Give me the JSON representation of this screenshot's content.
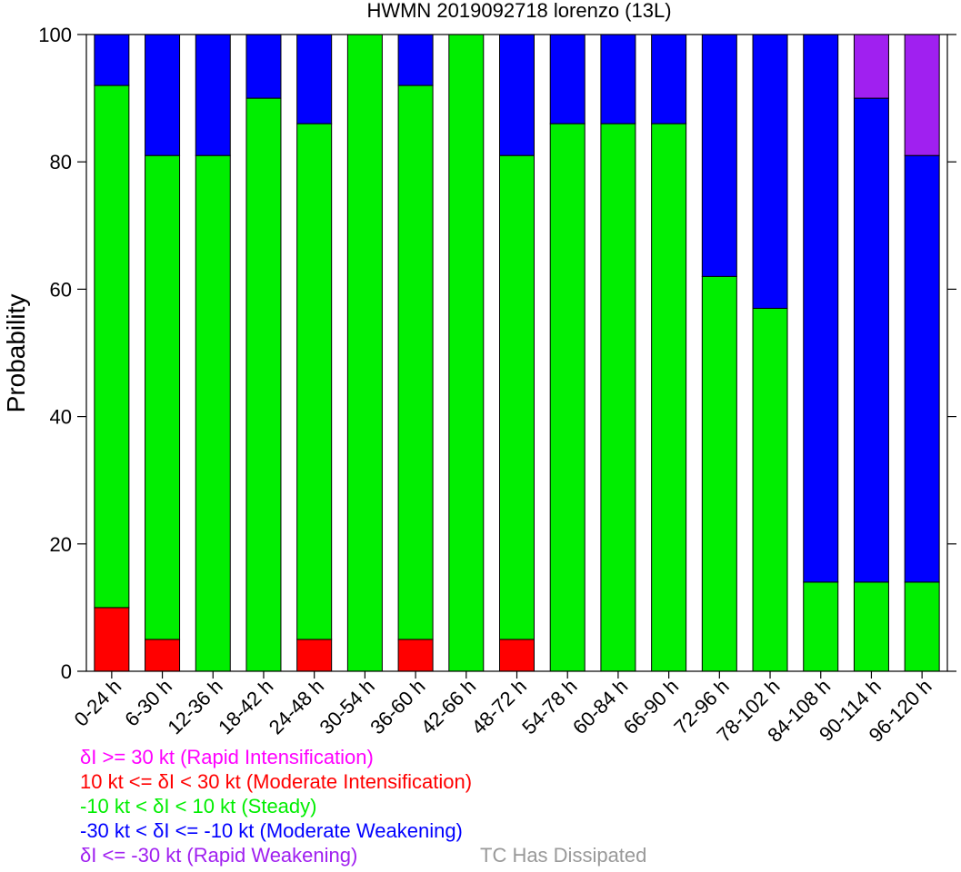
{
  "chart_data": {
    "type": "bar",
    "stacked": true,
    "title": "HWMN 2019092718 lorenzo (13L)",
    "ylabel": "Probability",
    "xlabel": "",
    "ylim": [
      0,
      100
    ],
    "yticks": [
      0,
      20,
      40,
      60,
      80,
      100
    ],
    "categories": [
      "0-24 h",
      "6-30 h",
      "12-36 h",
      "18-42 h",
      "24-48 h",
      "30-54 h",
      "36-60 h",
      "42-66 h",
      "48-72 h",
      "54-78 h",
      "60-84 h",
      "66-90 h",
      "72-96 h",
      "78-102 h",
      "84-108 h",
      "90-114 h",
      "96-120 h"
    ],
    "series": [
      {
        "name": "Moderate Intensification",
        "color": "#ff0000",
        "values": [
          10,
          5,
          0,
          0,
          5,
          0,
          5,
          0,
          5,
          0,
          0,
          0,
          0,
          0,
          0,
          0,
          0
        ]
      },
      {
        "name": "Steady",
        "color": "#00ee00",
        "values": [
          82,
          76,
          81,
          90,
          81,
          100,
          87,
          100,
          76,
          86,
          86,
          86,
          62,
          57,
          14,
          14,
          14
        ]
      },
      {
        "name": "Moderate Weakening",
        "color": "#0000ff",
        "values": [
          8,
          19,
          19,
          10,
          14,
          0,
          8,
          0,
          19,
          14,
          14,
          14,
          38,
          43,
          86,
          76,
          67
        ]
      },
      {
        "name": "Rapid Weakening",
        "color": "#a020f0",
        "values": [
          0,
          0,
          0,
          0,
          0,
          0,
          0,
          0,
          0,
          0,
          0,
          0,
          0,
          0,
          0,
          10,
          19
        ]
      }
    ],
    "grid": false
  },
  "legend": [
    {
      "text": "δI >= 30 kt (Rapid Intensification)",
      "color": "#ff00ff"
    },
    {
      "text": "10 kt <= δI < 30 kt (Moderate Intensification)",
      "color": "#ff0000"
    },
    {
      "text": "-10 kt < δI < 10 kt (Steady)",
      "color": "#00ee00"
    },
    {
      "text": "-30 kt < δI <= -10 kt (Moderate Weakening)",
      "color": "#0000ff"
    },
    {
      "text": "δI <= -30 kt (Rapid Weakening)",
      "color": "#a020f0"
    }
  ],
  "dissipated_label": {
    "text": "TC Has Dissipated",
    "color": "#999999"
  }
}
